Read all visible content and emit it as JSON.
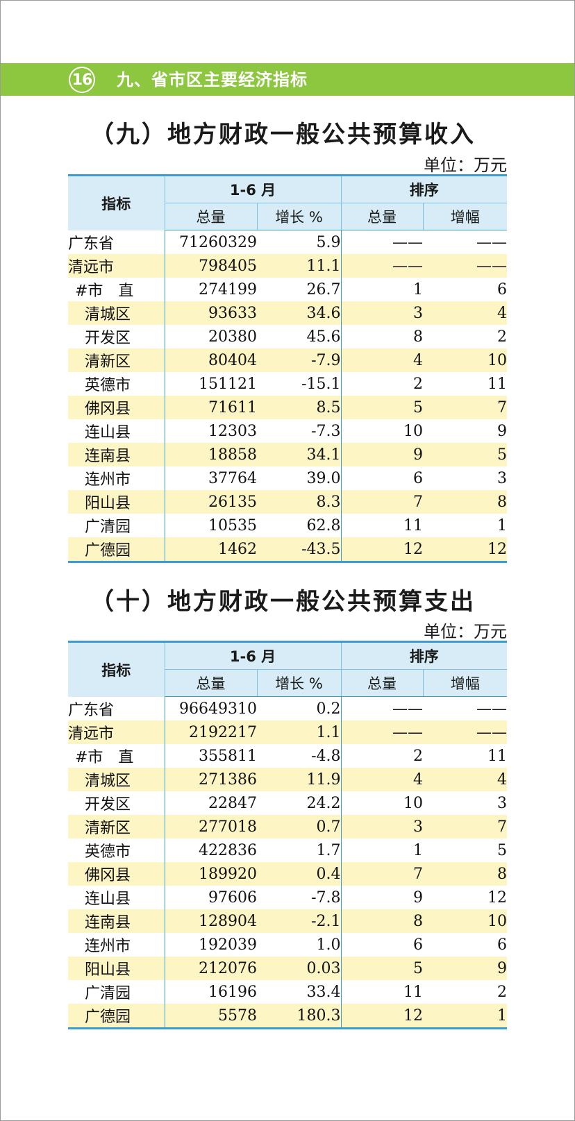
{
  "banner": {
    "page_number": "16",
    "title": "九、省市区主要经济指标"
  },
  "colors": {
    "banner_green": "#8dc63f",
    "header_blue": "#d7ecf6",
    "rule_blue": "#3a9bd5",
    "highlight_yellow": "#fdf5c3"
  },
  "tables": [
    {
      "title": "（九）地方财政一般公共预算收入",
      "unit": "单位：万元",
      "header": {
        "indicator": "指标",
        "period": "1-6 月",
        "rank": "排序",
        "total": "总量",
        "growth": "增长 %",
        "rank_total": "总量",
        "rank_growth": "增幅"
      },
      "rows": [
        {
          "name": "广东省",
          "total": "71260329",
          "growth": "5.9",
          "rank_total": "——",
          "rank_growth": "——"
        },
        {
          "name": "清远市",
          "total": "798405",
          "growth": "11.1",
          "rank_total": "——",
          "rank_growth": "——"
        },
        {
          "name": "#市　直",
          "total": "274199",
          "growth": "26.7",
          "rank_total": "1",
          "rank_growth": "6"
        },
        {
          "name": "清城区",
          "total": "93633",
          "growth": "34.6",
          "rank_total": "3",
          "rank_growth": "4"
        },
        {
          "name": "开发区",
          "total": "20380",
          "growth": "45.6",
          "rank_total": "8",
          "rank_growth": "2"
        },
        {
          "name": "清新区",
          "total": "80404",
          "growth": "-7.9",
          "rank_total": "4",
          "rank_growth": "10"
        },
        {
          "name": "英德市",
          "total": "151121",
          "growth": "-15.1",
          "rank_total": "2",
          "rank_growth": "11"
        },
        {
          "name": "佛冈县",
          "total": "71611",
          "growth": "8.5",
          "rank_total": "5",
          "rank_growth": "7"
        },
        {
          "name": "连山县",
          "total": "12303",
          "growth": "-7.3",
          "rank_total": "10",
          "rank_growth": "9"
        },
        {
          "name": "连南县",
          "total": "18858",
          "growth": "34.1",
          "rank_total": "9",
          "rank_growth": "5"
        },
        {
          "name": "连州市",
          "total": "37764",
          "growth": "39.0",
          "rank_total": "6",
          "rank_growth": "3"
        },
        {
          "name": "阳山县",
          "total": "26135",
          "growth": "8.3",
          "rank_total": "7",
          "rank_growth": "8"
        },
        {
          "name": "广清园",
          "total": "10535",
          "growth": "62.8",
          "rank_total": "11",
          "rank_growth": "1"
        },
        {
          "name": "广德园",
          "total": "1462",
          "growth": "-43.5",
          "rank_total": "12",
          "rank_growth": "12"
        }
      ]
    },
    {
      "title": "（十）地方财政一般公共预算支出",
      "unit": "单位：万元",
      "header": {
        "indicator": "指标",
        "period": "1-6 月",
        "rank": "排序",
        "total": "总量",
        "growth": "增长 %",
        "rank_total": "总量",
        "rank_growth": "增幅"
      },
      "rows": [
        {
          "name": "广东省",
          "total": "96649310",
          "growth": "0.2",
          "rank_total": "——",
          "rank_growth": "——"
        },
        {
          "name": "清远市",
          "total": "2192217",
          "growth": "1.1",
          "rank_total": "——",
          "rank_growth": "——"
        },
        {
          "name": "#市　直",
          "total": "355811",
          "growth": "-4.8",
          "rank_total": "2",
          "rank_growth": "11"
        },
        {
          "name": "清城区",
          "total": "271386",
          "growth": "11.9",
          "rank_total": "4",
          "rank_growth": "4"
        },
        {
          "name": "开发区",
          "total": "22847",
          "growth": "24.2",
          "rank_total": "10",
          "rank_growth": "3"
        },
        {
          "name": "清新区",
          "total": "277018",
          "growth": "0.7",
          "rank_total": "3",
          "rank_growth": "7"
        },
        {
          "name": "英德市",
          "total": "422836",
          "growth": "1.7",
          "rank_total": "1",
          "rank_growth": "5"
        },
        {
          "name": "佛冈县",
          "total": "189920",
          "growth": "0.4",
          "rank_total": "7",
          "rank_growth": "8"
        },
        {
          "name": "连山县",
          "total": "97606",
          "growth": "-7.8",
          "rank_total": "9",
          "rank_growth": "12"
        },
        {
          "name": "连南县",
          "total": "128904",
          "growth": "-2.1",
          "rank_total": "8",
          "rank_growth": "10"
        },
        {
          "name": "连州市",
          "total": "192039",
          "growth": "1.0",
          "rank_total": "6",
          "rank_growth": "6"
        },
        {
          "name": "阳山县",
          "total": "212076",
          "growth": "0.03",
          "rank_total": "5",
          "rank_growth": "9"
        },
        {
          "name": "广清园",
          "total": "16196",
          "growth": "33.4",
          "rank_total": "11",
          "rank_growth": "2"
        },
        {
          "name": "广德园",
          "total": "5578",
          "growth": "180.3",
          "rank_total": "12",
          "rank_growth": "1"
        }
      ]
    }
  ]
}
